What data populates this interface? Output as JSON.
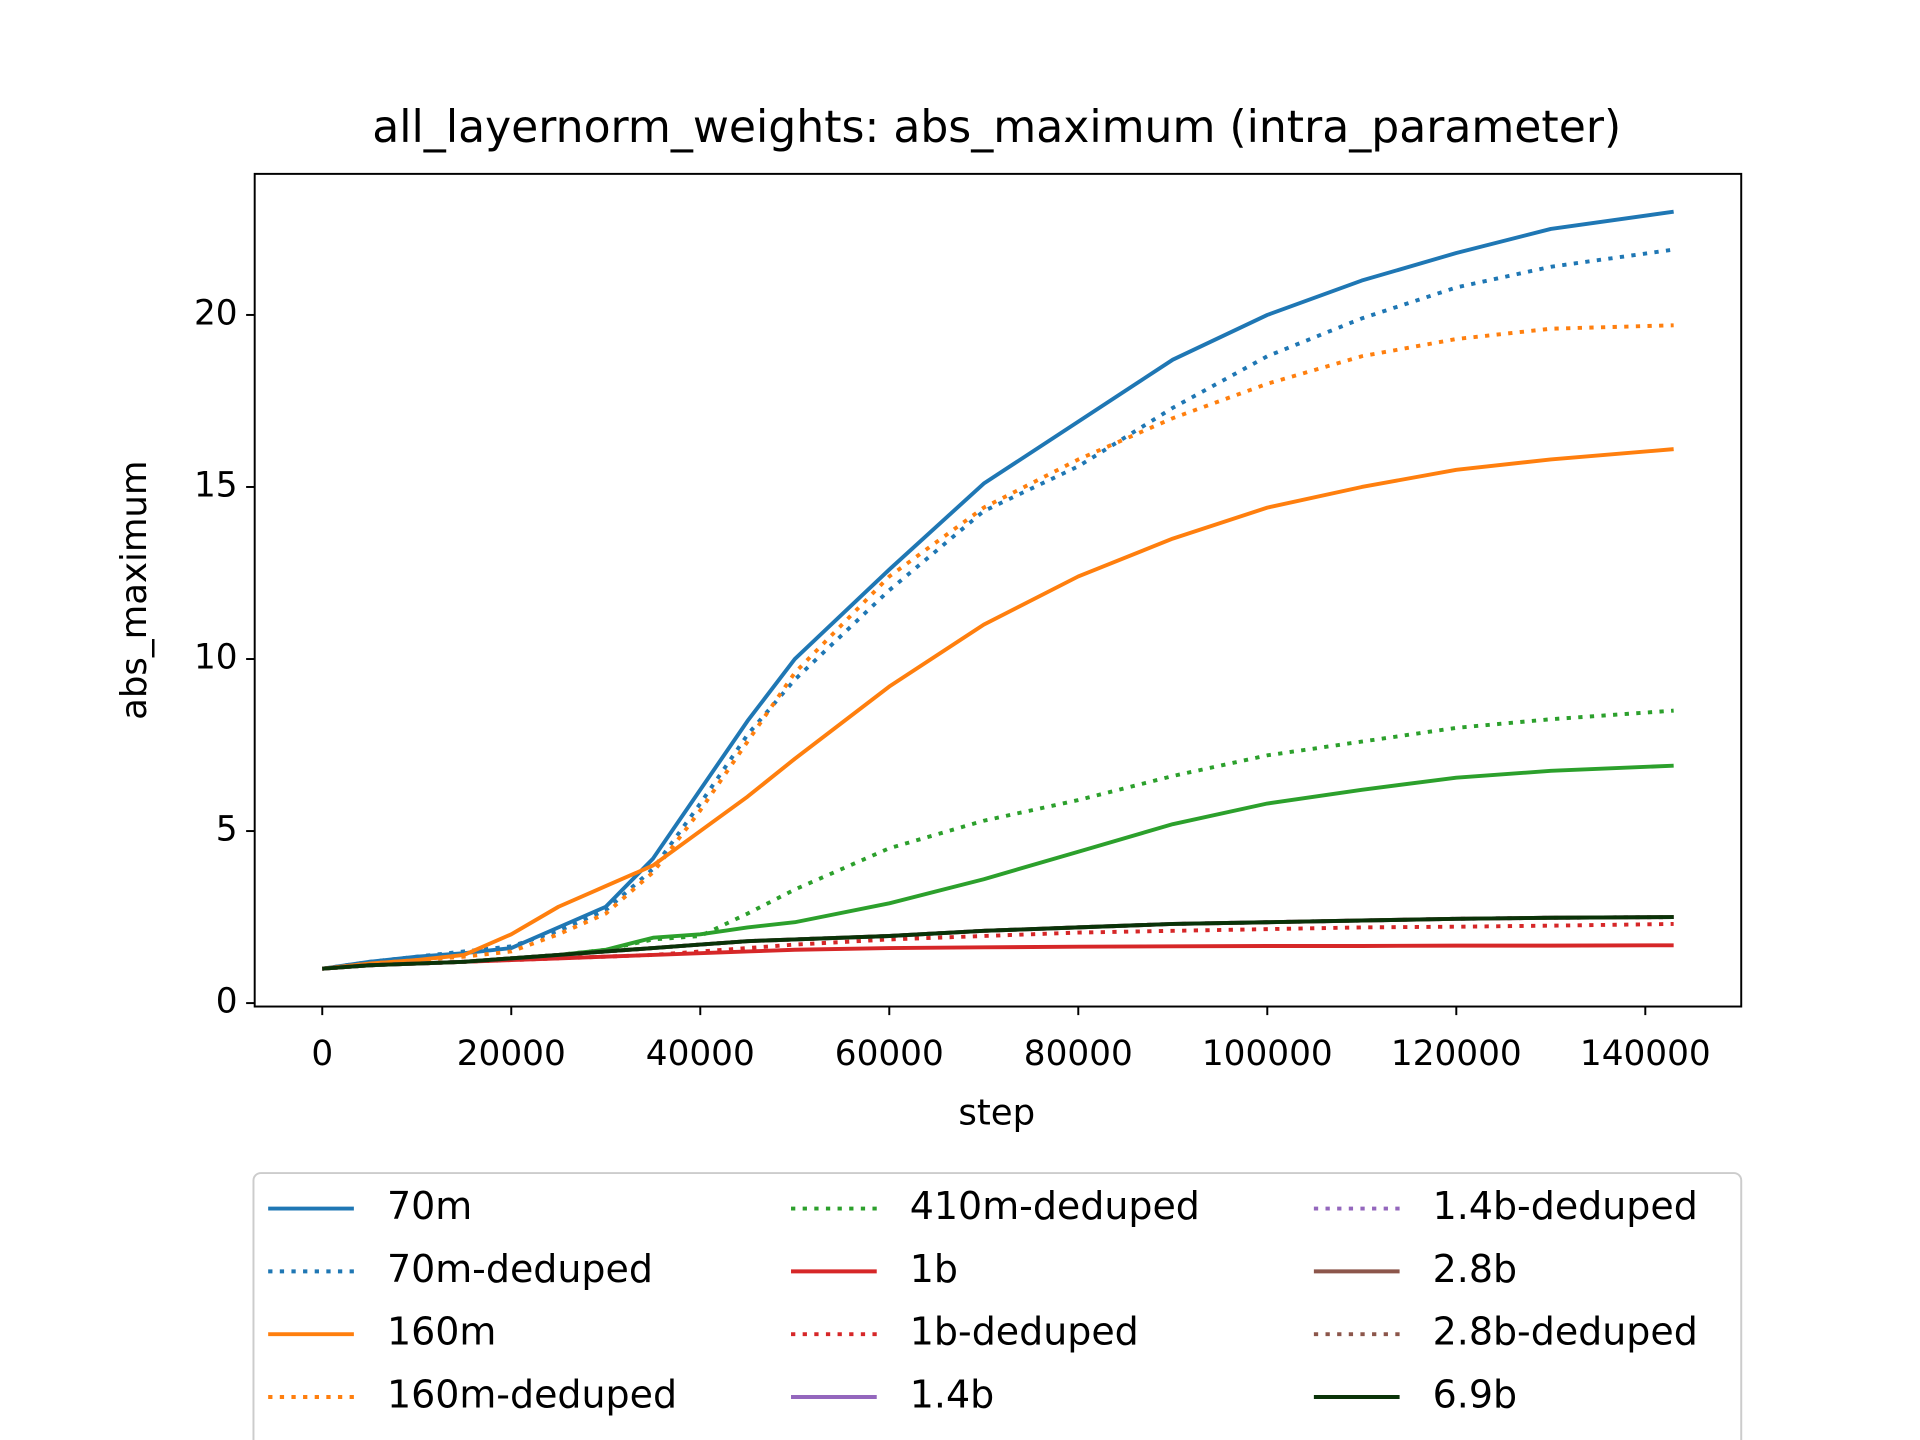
{
  "chart_data": {
    "type": "line",
    "title": "all_layernorm_weights: abs_maximum (intra_parameter)",
    "xlabel": "step",
    "ylabel": "abs_maximum",
    "x": [
      0,
      5000,
      10000,
      15000,
      20000,
      25000,
      30000,
      35000,
      40000,
      45000,
      50000,
      60000,
      70000,
      80000,
      90000,
      100000,
      110000,
      120000,
      130000,
      143000
    ],
    "xlim": [
      -7150,
      150150
    ],
    "xticks": [
      0,
      20000,
      40000,
      60000,
      80000,
      100000,
      120000,
      140000
    ],
    "ylim": [
      -0.1,
      24.1
    ],
    "yticks": [
      0,
      5,
      10,
      15,
      20
    ],
    "legend": "below",
    "series": [
      {
        "name": "70m",
        "color": "#1f77b4",
        "linestyle": "solid",
        "values": [
          1.0,
          1.2,
          1.35,
          1.45,
          1.6,
          2.2,
          2.8,
          4.2,
          6.2,
          8.2,
          10.0,
          12.6,
          15.1,
          16.9,
          18.7,
          20.0,
          21.0,
          21.8,
          22.5,
          23.0
        ]
      },
      {
        "name": "70m-deduped",
        "color": "#1f77b4",
        "linestyle": "dotted",
        "values": [
          1.0,
          1.2,
          1.35,
          1.5,
          1.65,
          2.1,
          2.7,
          3.9,
          5.8,
          7.8,
          9.4,
          12.0,
          14.3,
          15.6,
          17.3,
          18.8,
          19.9,
          20.8,
          21.4,
          21.9
        ]
      },
      {
        "name": "160m",
        "color": "#ff7f0e",
        "linestyle": "solid",
        "values": [
          1.0,
          1.15,
          1.25,
          1.4,
          2.0,
          2.8,
          3.4,
          4.0,
          5.0,
          6.0,
          7.1,
          9.2,
          11.0,
          12.4,
          13.5,
          14.4,
          15.0,
          15.5,
          15.8,
          16.1
        ]
      },
      {
        "name": "160m-deduped",
        "color": "#ff7f0e",
        "linestyle": "dotted",
        "values": [
          1.0,
          1.15,
          1.25,
          1.35,
          1.5,
          2.0,
          2.6,
          3.8,
          5.6,
          7.6,
          9.6,
          12.4,
          14.4,
          15.8,
          17.0,
          18.0,
          18.8,
          19.3,
          19.6,
          19.7
        ]
      },
      {
        "color": "#2ca02c",
        "linestyle": "solid",
        "values": [
          1.0,
          1.1,
          1.15,
          1.2,
          1.3,
          1.4,
          1.55,
          1.9,
          2.0,
          2.2,
          2.35,
          2.9,
          3.6,
          4.4,
          5.2,
          5.8,
          6.2,
          6.55,
          6.75,
          6.9
        ]
      },
      {
        "name": "410m-deduped",
        "color": "#2ca02c",
        "linestyle": "dotted",
        "values": [
          1.0,
          1.1,
          1.15,
          1.2,
          1.3,
          1.4,
          1.55,
          1.85,
          1.95,
          2.6,
          3.3,
          4.5,
          5.3,
          5.9,
          6.6,
          7.2,
          7.6,
          8.0,
          8.25,
          8.5
        ]
      },
      {
        "name": "1b",
        "color": "#d62728",
        "linestyle": "solid",
        "values": [
          1.0,
          1.1,
          1.15,
          1.2,
          1.25,
          1.3,
          1.35,
          1.4,
          1.45,
          1.5,
          1.55,
          1.6,
          1.62,
          1.64,
          1.65,
          1.66,
          1.66,
          1.67,
          1.67,
          1.68
        ]
      },
      {
        "name": "1b-deduped",
        "color": "#d62728",
        "linestyle": "dotted",
        "values": [
          1.0,
          1.1,
          1.15,
          1.2,
          1.25,
          1.3,
          1.35,
          1.4,
          1.5,
          1.6,
          1.7,
          1.85,
          1.95,
          2.05,
          2.1,
          2.15,
          2.2,
          2.22,
          2.25,
          2.3
        ]
      },
      {
        "name": "1.4b",
        "color": "#9467bd",
        "linestyle": "solid",
        "values": [
          1.0,
          1.1,
          1.15,
          1.2,
          1.3,
          1.4,
          1.5,
          1.6,
          1.7,
          1.8,
          1.85,
          1.95,
          2.1,
          2.2,
          2.3,
          2.35,
          2.4,
          2.45,
          2.48,
          2.5
        ]
      },
      {
        "name": "1.4b-deduped",
        "color": "#9467bd",
        "linestyle": "dotted",
        "values": [
          1.0,
          1.1,
          1.15,
          1.2,
          1.3,
          1.4,
          1.5,
          1.6,
          1.7,
          1.8,
          1.85,
          1.95,
          2.1,
          2.2,
          2.3,
          2.35,
          2.4,
          2.45,
          2.48,
          2.5
        ]
      },
      {
        "name": "2.8b",
        "color": "#8c564b",
        "linestyle": "solid",
        "values": [
          1.0,
          1.1,
          1.15,
          1.2,
          1.3,
          1.4,
          1.5,
          1.6,
          1.7,
          1.8,
          1.85,
          1.95,
          2.1,
          2.2,
          2.3,
          2.35,
          2.4,
          2.45,
          2.48,
          2.5
        ]
      },
      {
        "name": "2.8b-deduped",
        "color": "#8c564b",
        "linestyle": "dotted",
        "values": [
          1.0,
          1.1,
          1.15,
          1.2,
          1.3,
          1.4,
          1.5,
          1.6,
          1.7,
          1.8,
          1.85,
          1.95,
          2.1,
          2.2,
          2.3,
          2.35,
          2.4,
          2.45,
          2.48,
          2.5
        ]
      },
      {
        "name": "6.9b",
        "color": "#0a3308",
        "linestyle": "solid",
        "values": [
          1.0,
          1.1,
          1.15,
          1.2,
          1.3,
          1.4,
          1.5,
          1.6,
          1.7,
          1.8,
          1.85,
          1.95,
          2.1,
          2.2,
          2.3,
          2.35,
          2.4,
          2.45,
          2.48,
          2.5
        ]
      }
    ]
  }
}
